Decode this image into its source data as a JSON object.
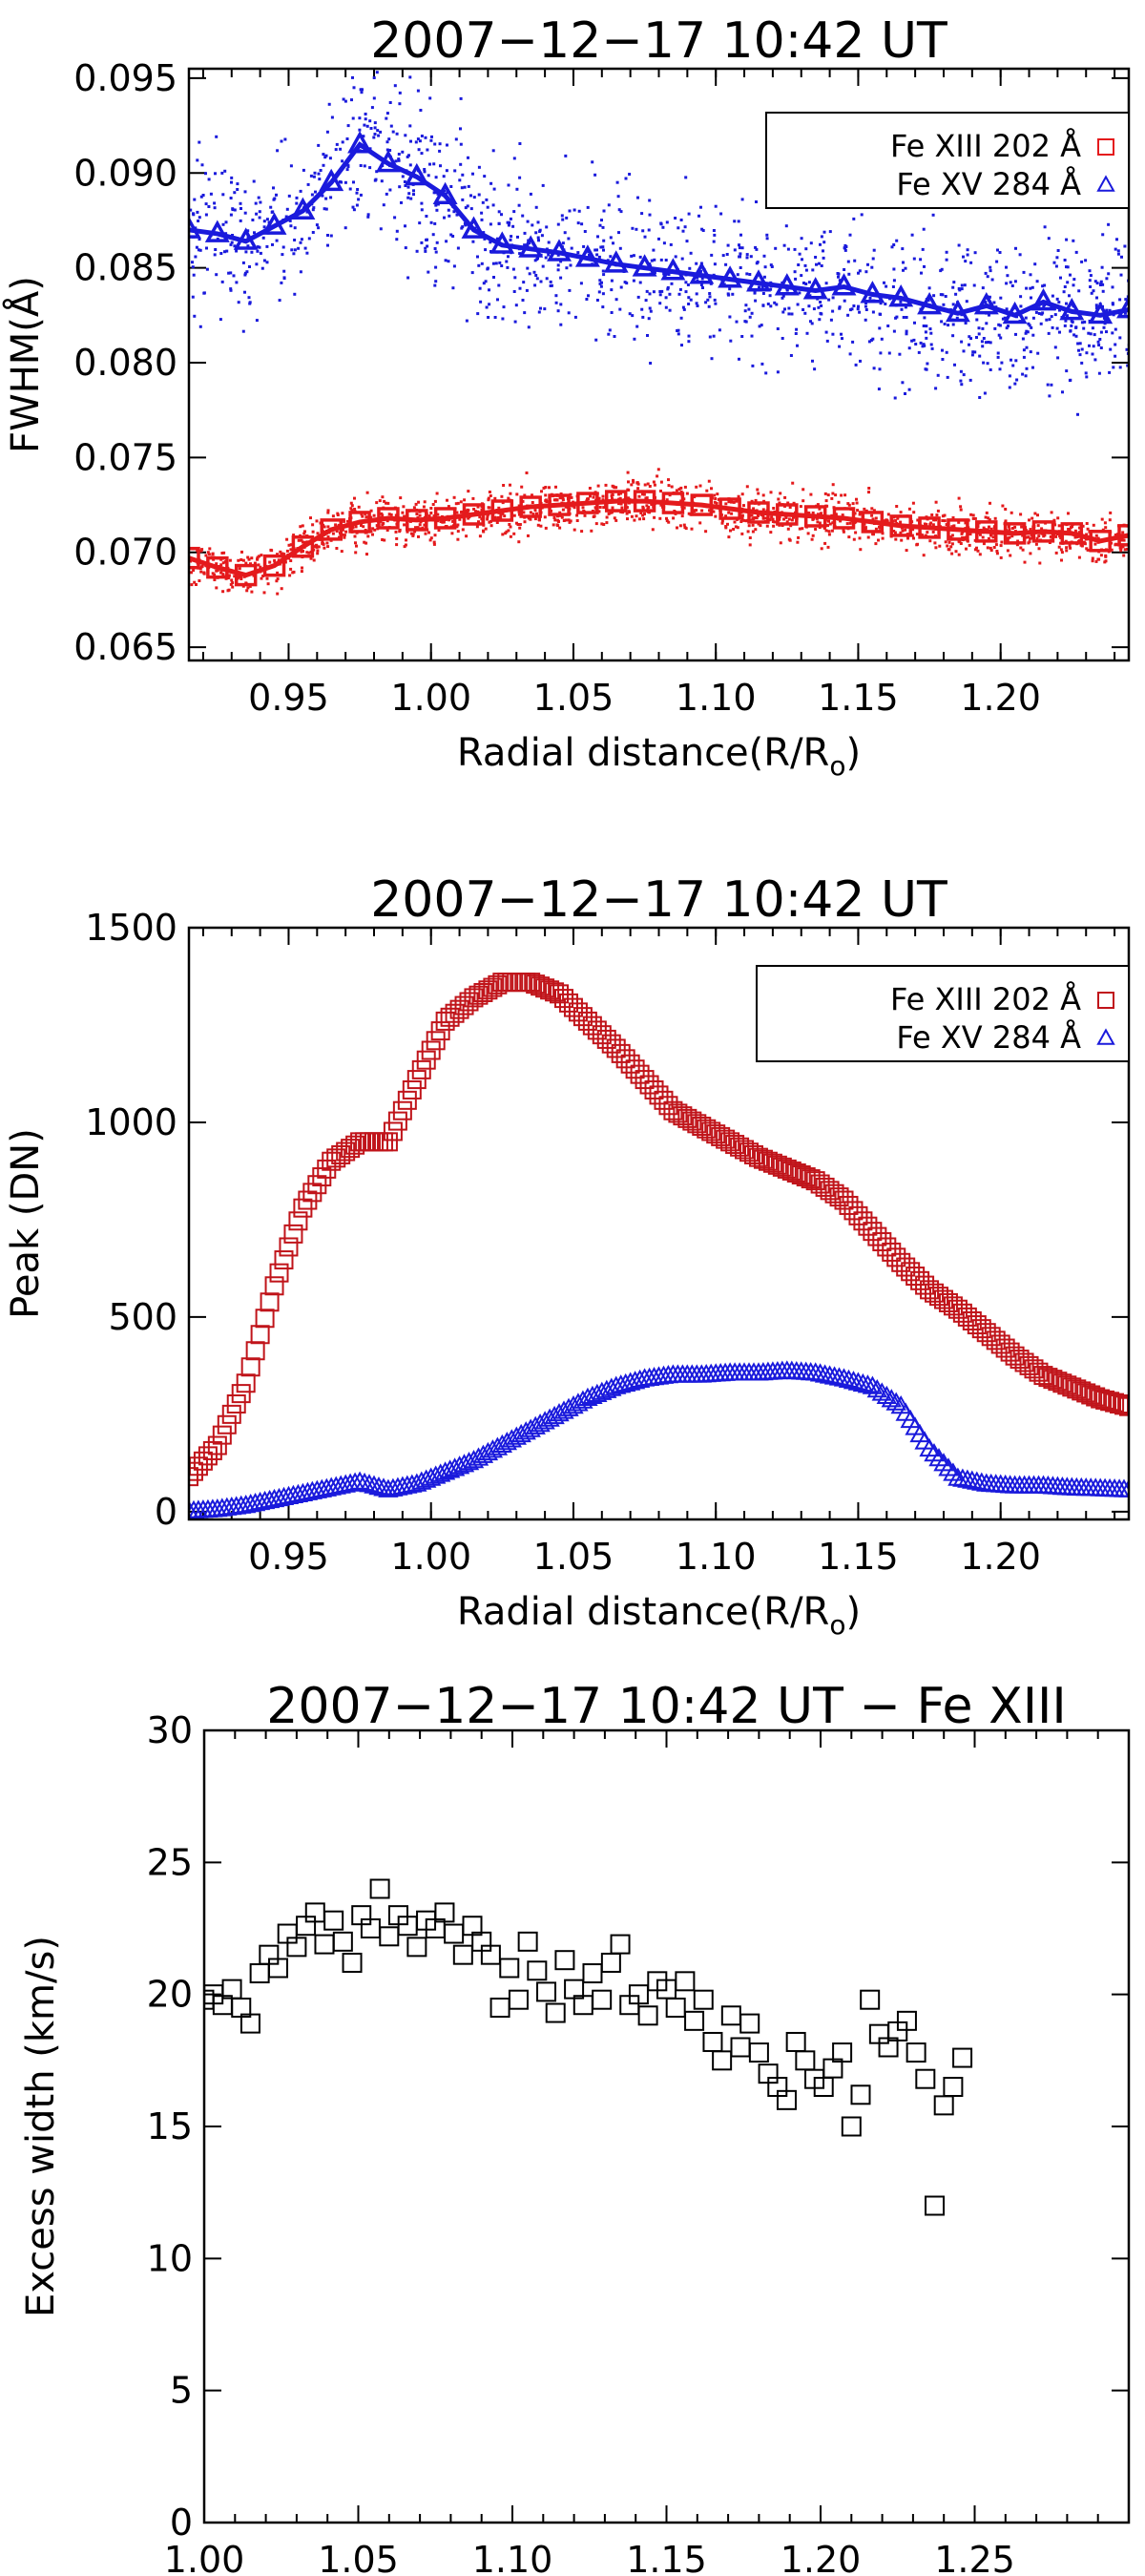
{
  "chart_data": [
    {
      "type": "scatter",
      "title": "2007−12−17 10:42 UT",
      "xlabel": "Radial distance(R/R",
      "xlabel_sub": "o",
      "xlabel_close": ")",
      "ylabel": "FWHM(Å)",
      "xlim": [
        0.915,
        1.245
      ],
      "ylim": [
        0.0643,
        0.0955
      ],
      "xticks": [
        "0.95",
        "1.00",
        "1.05",
        "1.10",
        "1.15",
        "1.20"
      ],
      "yticks": [
        "0.065",
        "0.070",
        "0.075",
        "0.080",
        "0.085",
        "0.090",
        "0.095"
      ],
      "legend": [
        {
          "label": "Fe XIII 202 Å",
          "marker": "square",
          "color": "#e41a1c"
        },
        {
          "label": "Fe XV 284 Å",
          "marker": "triangle",
          "color": "#1a1adc"
        }
      ],
      "series": [
        {
          "name": "Fe XV 284 Å",
          "color": "#1a1adc",
          "marker": "triangle",
          "x": [
            0.915,
            0.925,
            0.935,
            0.945,
            0.955,
            0.965,
            0.975,
            0.985,
            0.995,
            1.005,
            1.015,
            1.025,
            1.035,
            1.045,
            1.055,
            1.065,
            1.075,
            1.085,
            1.095,
            1.105,
            1.115,
            1.125,
            1.135,
            1.145,
            1.155,
            1.165,
            1.175,
            1.185,
            1.195,
            1.205,
            1.215,
            1.225,
            1.235,
            1.245
          ],
          "values": [
            0.087,
            0.0868,
            0.0864,
            0.0872,
            0.088,
            0.0895,
            0.0915,
            0.0905,
            0.0898,
            0.0888,
            0.087,
            0.0862,
            0.086,
            0.0858,
            0.0855,
            0.0852,
            0.085,
            0.0848,
            0.0846,
            0.0844,
            0.0842,
            0.084,
            0.0838,
            0.084,
            0.0836,
            0.0834,
            0.083,
            0.0826,
            0.083,
            0.0825,
            0.0832,
            0.0827,
            0.0825,
            0.0828
          ]
        },
        {
          "name": "Fe XIII 202 Å",
          "color": "#e41a1c",
          "marker": "square",
          "x": [
            0.915,
            0.925,
            0.935,
            0.945,
            0.955,
            0.965,
            0.975,
            0.985,
            0.995,
            1.005,
            1.015,
            1.025,
            1.035,
            1.045,
            1.055,
            1.065,
            1.075,
            1.085,
            1.095,
            1.105,
            1.115,
            1.125,
            1.135,
            1.145,
            1.155,
            1.165,
            1.175,
            1.185,
            1.195,
            1.205,
            1.215,
            1.225,
            1.235,
            1.245
          ],
          "values": [
            0.0697,
            0.0692,
            0.0688,
            0.0693,
            0.0703,
            0.0712,
            0.0716,
            0.0718,
            0.0717,
            0.0718,
            0.072,
            0.0722,
            0.0724,
            0.0725,
            0.0726,
            0.0727,
            0.0727,
            0.0726,
            0.0725,
            0.0723,
            0.0721,
            0.072,
            0.0719,
            0.0718,
            0.0716,
            0.0714,
            0.0713,
            0.0712,
            0.0711,
            0.071,
            0.0711,
            0.071,
            0.0706,
            0.0709
          ]
        }
      ]
    },
    {
      "type": "scatter",
      "title": "2007−12−17 10:42 UT",
      "xlabel": "Radial distance(R/R",
      "xlabel_sub": "o",
      "xlabel_close": ")",
      "ylabel": "Peak (DN)",
      "xlim": [
        0.915,
        1.245
      ],
      "ylim": [
        -20,
        1500
      ],
      "xticks": [
        "0.95",
        "1.00",
        "1.05",
        "1.10",
        "1.15",
        "1.20"
      ],
      "yticks": [
        "0",
        "500",
        "1000",
        "1500"
      ],
      "legend": [
        {
          "label": "Fe XIII 202 Å",
          "marker": "square",
          "color": "#c0141a"
        },
        {
          "label": "Fe XV 284 Å",
          "marker": "triangle",
          "color": "#1a1adc"
        }
      ],
      "series": [
        {
          "name": "Fe XIII 202 Å",
          "color": "#c0141a",
          "marker": "square",
          "x": [
            0.915,
            0.925,
            0.935,
            0.945,
            0.955,
            0.965,
            0.975,
            0.985,
            0.995,
            1.005,
            1.015,
            1.025,
            1.035,
            1.045,
            1.055,
            1.065,
            1.075,
            1.085,
            1.095,
            1.105,
            1.115,
            1.125,
            1.135,
            1.145,
            1.155,
            1.165,
            1.175,
            1.185,
            1.195,
            1.205,
            1.215,
            1.225,
            1.235,
            1.245
          ],
          "values": [
            90,
            170,
            330,
            580,
            780,
            900,
            950,
            950,
            1110,
            1260,
            1320,
            1360,
            1360,
            1330,
            1260,
            1190,
            1110,
            1030,
            990,
            950,
            910,
            880,
            850,
            800,
            720,
            640,
            570,
            520,
            460,
            400,
            350,
            320,
            290,
            270
          ]
        },
        {
          "name": "Fe XV 284 Å",
          "color": "#1a1adc",
          "marker": "triangle",
          "x": [
            0.915,
            0.925,
            0.935,
            0.945,
            0.955,
            0.965,
            0.975,
            0.985,
            0.995,
            1.005,
            1.015,
            1.025,
            1.035,
            1.045,
            1.055,
            1.065,
            1.075,
            1.085,
            1.095,
            1.105,
            1.115,
            1.125,
            1.135,
            1.145,
            1.155,
            1.165,
            1.175,
            1.185,
            1.195,
            1.205,
            1.215,
            1.225,
            1.235,
            1.245
          ],
          "values": [
            0,
            5,
            15,
            30,
            45,
            60,
            75,
            55,
            70,
            100,
            130,
            170,
            210,
            250,
            290,
            320,
            340,
            350,
            350,
            355,
            355,
            360,
            355,
            340,
            320,
            270,
            160,
            85,
            70,
            65,
            65,
            60,
            58,
            55
          ]
        }
      ]
    },
    {
      "type": "scatter",
      "title": "2007−12−17 10:42 UT − Fe XIII",
      "xlabel": "Radial distance(R/R",
      "xlabel_sub": "o",
      "xlabel_close": ")",
      "ylabel": "Excess width (km/s)",
      "xlim": [
        1.0,
        1.3
      ],
      "ylim": [
        0,
        30
      ],
      "xticks": [
        "1.00",
        "1.05",
        "1.10",
        "1.15",
        "1.20",
        "1.25"
      ],
      "yticks": [
        "0",
        "5",
        "10",
        "15",
        "20",
        "25",
        "30"
      ],
      "series": [
        {
          "name": "Fe XIII",
          "color": "#000000",
          "marker": "square",
          "x": [
            1.0,
            1.003,
            1.006,
            1.009,
            1.012,
            1.015,
            1.018,
            1.021,
            1.024,
            1.027,
            1.03,
            1.033,
            1.036,
            1.039,
            1.042,
            1.045,
            1.048,
            1.051,
            1.054,
            1.057,
            1.06,
            1.063,
            1.066,
            1.069,
            1.072,
            1.075,
            1.078,
            1.081,
            1.084,
            1.087,
            1.09,
            1.093,
            1.096,
            1.099,
            1.102,
            1.105,
            1.108,
            1.111,
            1.114,
            1.117,
            1.12,
            1.123,
            1.126,
            1.129,
            1.132,
            1.135,
            1.138,
            1.141,
            1.144,
            1.147,
            1.15,
            1.153,
            1.156,
            1.159,
            1.162,
            1.165,
            1.168,
            1.171,
            1.174,
            1.177,
            1.18,
            1.183,
            1.186,
            1.189,
            1.192,
            1.195,
            1.198,
            1.201,
            1.204,
            1.207,
            1.21,
            1.213,
            1.216,
            1.219,
            1.222,
            1.225,
            1.228,
            1.231,
            1.234,
            1.237,
            1.24,
            1.243,
            1.246
          ],
          "values": [
            19.8,
            20.0,
            19.6,
            20.2,
            19.5,
            18.9,
            20.8,
            21.5,
            21.0,
            22.3,
            21.8,
            22.6,
            23.1,
            21.9,
            22.8,
            22.0,
            21.2,
            23.0,
            22.5,
            24.0,
            22.2,
            23.0,
            22.6,
            21.8,
            22.8,
            22.5,
            23.1,
            22.3,
            21.5,
            22.6,
            22.0,
            21.5,
            19.5,
            21.0,
            19.8,
            22.0,
            20.9,
            20.1,
            19.3,
            21.3,
            20.2,
            19.6,
            20.8,
            19.8,
            21.2,
            21.9,
            19.6,
            20.0,
            19.2,
            20.5,
            20.2,
            19.5,
            20.5,
            19.0,
            19.8,
            18.2,
            17.5,
            19.2,
            18.0,
            18.9,
            17.8,
            17.0,
            16.5,
            16.0,
            18.2,
            17.5,
            16.8,
            16.5,
            17.2,
            17.8,
            15.0,
            16.2,
            19.8,
            18.5,
            18.0,
            18.6,
            19.0,
            17.8,
            16.8,
            12.0,
            15.8,
            16.5,
            17.6
          ]
        }
      ]
    }
  ]
}
